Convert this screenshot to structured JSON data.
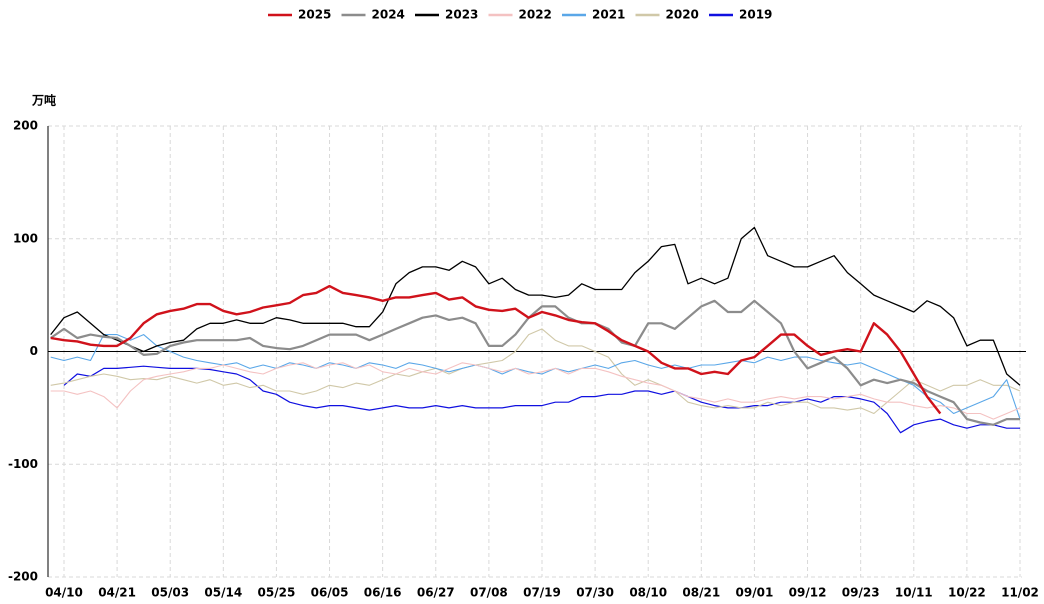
{
  "chart_data": {
    "type": "line",
    "y_label": "万吨",
    "categories": [
      null,
      "04/10",
      null,
      null,
      null,
      "04/21",
      null,
      null,
      null,
      "05/03",
      null,
      null,
      null,
      "05/14",
      null,
      null,
      null,
      "05/25",
      null,
      null,
      null,
      "06/05",
      null,
      null,
      null,
      "06/16",
      null,
      null,
      null,
      "06/27",
      null,
      null,
      null,
      "07/08",
      null,
      null,
      null,
      "07/19",
      null,
      null,
      null,
      "07/30",
      null,
      null,
      null,
      "08/10",
      null,
      null,
      null,
      "08/21",
      null,
      null,
      null,
      "09/01",
      null,
      null,
      null,
      "09/12",
      null,
      null,
      null,
      "09/23",
      null,
      null,
      null,
      "10/11",
      null,
      null,
      null,
      "10/22",
      null,
      null,
      null,
      "11/02"
    ],
    "ylim": [
      -200,
      200
    ],
    "yticks": [
      -200,
      -100,
      0,
      100,
      200
    ],
    "grid": true,
    "legend": "top",
    "series": [
      {
        "name": "2025",
        "color": "#d0121b",
        "values": [
          12,
          10,
          9,
          6,
          5,
          5,
          12,
          25,
          33,
          36,
          38,
          42,
          42,
          36,
          33,
          35,
          39,
          41,
          43,
          50,
          52,
          58,
          52,
          50,
          48,
          45,
          48,
          48,
          50,
          52,
          46,
          48,
          40,
          37,
          36,
          38,
          30,
          35,
          32,
          28,
          26,
          25,
          18,
          10,
          5,
          0,
          -10,
          -15,
          -15,
          -20,
          -18,
          -20,
          -8,
          -5,
          5,
          15,
          15,
          5,
          -3,
          0,
          2,
          0,
          25,
          15,
          0,
          -20,
          -40,
          -55,
          null,
          null,
          null,
          null,
          null,
          null
        ]
      },
      {
        "name": "2024",
        "color": "#8c8c8c",
        "values": [
          12,
          20,
          12,
          15,
          13,
          12,
          5,
          -3,
          -2,
          5,
          8,
          10,
          10,
          10,
          10,
          12,
          5,
          3,
          2,
          5,
          10,
          15,
          15,
          15,
          10,
          15,
          20,
          25,
          30,
          32,
          28,
          30,
          25,
          5,
          5,
          15,
          30,
          40,
          40,
          30,
          25,
          25,
          20,
          8,
          5,
          25,
          25,
          20,
          30,
          40,
          45,
          35,
          35,
          45,
          35,
          25,
          0,
          -15,
          -10,
          -5,
          -15,
          -30,
          -25,
          -28,
          -25,
          -28,
          -35,
          -40,
          -45,
          -60,
          -63,
          -65,
          -60,
          -60
        ]
      },
      {
        "name": "2023",
        "color": "#000000",
        "values": [
          15,
          30,
          35,
          25,
          15,
          10,
          5,
          0,
          5,
          8,
          10,
          20,
          25,
          25,
          28,
          25,
          25,
          30,
          28,
          25,
          25,
          25,
          25,
          22,
          22,
          35,
          60,
          70,
          75,
          75,
          72,
          80,
          75,
          60,
          65,
          55,
          50,
          50,
          48,
          50,
          60,
          55,
          55,
          55,
          70,
          80,
          93,
          95,
          60,
          65,
          60,
          65,
          100,
          110,
          85,
          80,
          75,
          75,
          80,
          85,
          70,
          60,
          50,
          45,
          40,
          35,
          45,
          40,
          30,
          5,
          10,
          10,
          -20,
          -30
        ]
      },
      {
        "name": "2022",
        "color": "#f4c2c2",
        "values": [
          -35,
          -35,
          -38,
          -35,
          -40,
          -50,
          -35,
          -25,
          -22,
          -20,
          -18,
          -15,
          -15,
          -12,
          -15,
          -18,
          -20,
          -15,
          -12,
          -10,
          -15,
          -12,
          -10,
          -15,
          -12,
          -18,
          -20,
          -15,
          -18,
          -20,
          -15,
          -10,
          -12,
          -15,
          -18,
          -15,
          -20,
          -18,
          -15,
          -20,
          -15,
          -15,
          -18,
          -22,
          -25,
          -28,
          -30,
          -35,
          -40,
          -42,
          -45,
          -42,
          -45,
          -45,
          -42,
          -40,
          -42,
          -40,
          -40,
          -42,
          -40,
          -38,
          -42,
          -45,
          -45,
          -48,
          -50,
          -48,
          -50,
          -55,
          -55,
          -60,
          -55,
          -50
        ]
      },
      {
        "name": "2021",
        "color": "#5aa7e8",
        "values": [
          -5,
          -8,
          -5,
          -8,
          15,
          15,
          10,
          15,
          5,
          0,
          -5,
          -8,
          -10,
          -12,
          -10,
          -15,
          -12,
          -15,
          -10,
          -12,
          -15,
          -10,
          -12,
          -15,
          -10,
          -12,
          -15,
          -10,
          -12,
          -15,
          -18,
          -15,
          -12,
          -15,
          -20,
          -15,
          -18,
          -20,
          -15,
          -18,
          -15,
          -12,
          -15,
          -10,
          -8,
          -12,
          -15,
          -12,
          -15,
          -12,
          -12,
          -10,
          -8,
          -10,
          -5,
          -8,
          -5,
          -5,
          -8,
          -10,
          -12,
          -10,
          -15,
          -20,
          -25,
          -30,
          -40,
          -45,
          -55,
          -50,
          -45,
          -40,
          -25,
          -60
        ]
      },
      {
        "name": "2020",
        "color": "#d0c8a8",
        "values": [
          -30,
          -28,
          -25,
          -22,
          -20,
          -22,
          -25,
          -24,
          -25,
          -22,
          -25,
          -28,
          -25,
          -30,
          -28,
          -32,
          -30,
          -35,
          -35,
          -38,
          -35,
          -30,
          -32,
          -28,
          -30,
          -25,
          -20,
          -22,
          -18,
          -15,
          -20,
          -15,
          -12,
          -10,
          -8,
          0,
          15,
          20,
          10,
          5,
          5,
          0,
          -5,
          -20,
          -30,
          -25,
          -30,
          -35,
          -45,
          -48,
          -50,
          -48,
          -50,
          -50,
          -45,
          -48,
          -45,
          -45,
          -50,
          -50,
          -52,
          -50,
          -55,
          -45,
          -35,
          -25,
          -30,
          -35,
          -30,
          -30,
          -25,
          -30,
          -30,
          -35
        ]
      },
      {
        "name": "2019",
        "color": "#1010e0",
        "values": [
          null,
          -30,
          -20,
          -22,
          -15,
          -15,
          -14,
          -13,
          -14,
          -15,
          -15,
          -15,
          -16,
          -18,
          -20,
          -25,
          -35,
          -38,
          -45,
          -48,
          -50,
          -48,
          -48,
          -50,
          -52,
          -50,
          -48,
          -50,
          -50,
          -48,
          -50,
          -48,
          -50,
          -50,
          -50,
          -48,
          -48,
          -48,
          -45,
          -45,
          -40,
          -40,
          -38,
          -38,
          -35,
          -35,
          -38,
          -35,
          -40,
          -45,
          -48,
          -50,
          -50,
          -48,
          -48,
          -45,
          -45,
          -42,
          -45,
          -40,
          -40,
          -42,
          -45,
          -55,
          -72,
          -65,
          -62,
          -60,
          -65,
          -68,
          -65,
          -65,
          -68,
          -68
        ]
      }
    ]
  }
}
